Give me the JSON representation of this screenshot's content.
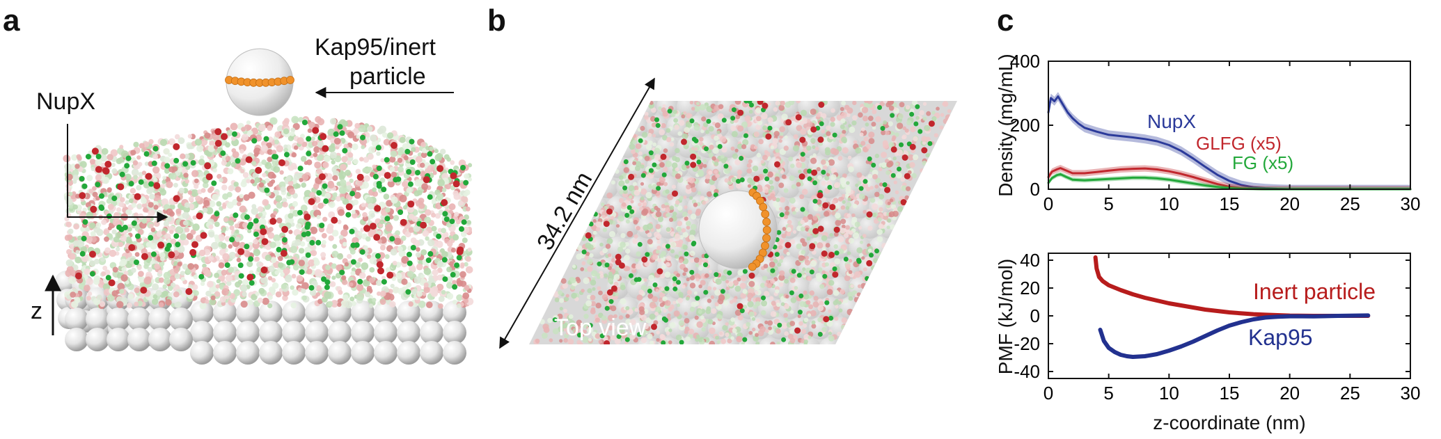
{
  "panels": {
    "a": {
      "letter": "a",
      "label_protein": "NupX",
      "particle_label_line1": "Kap95/inert",
      "particle_label_line2": "particle",
      "axis_label": "z"
    },
    "b": {
      "letter": "b",
      "size_label": "34.2 nm",
      "view_label": "Top view"
    },
    "c": {
      "letter": "c"
    }
  },
  "colors": {
    "nupx": "#2b3a9a",
    "glfg": "#c1272d",
    "fg": "#22a83a",
    "inert": "#b71c1c",
    "kap95": "#22318f",
    "particle_band": "#f0922b",
    "bead_light": "#e8e8e8",
    "bead_shadow": "#9a9a9a"
  },
  "chart_data": [
    {
      "type": "line",
      "ylabel": "Density (mg/mL)",
      "xlabel": "",
      "xlim": [
        0,
        30
      ],
      "ylim": [
        0,
        400
      ],
      "xticks": [
        0,
        5,
        10,
        15,
        20,
        25,
        30
      ],
      "yticks": [
        0,
        200,
        400
      ],
      "series": [
        {
          "name": "NupX",
          "color": "#2b3a9a",
          "x": [
            0,
            0.2,
            0.5,
            0.8,
            1.2,
            1.6,
            2,
            2.5,
            3,
            4,
            5,
            6,
            7,
            8,
            9,
            10,
            11,
            12,
            13,
            14,
            15,
            16,
            17,
            18,
            19,
            20,
            22,
            25,
            28,
            30
          ],
          "y": [
            240,
            285,
            275,
            290,
            265,
            240,
            222,
            205,
            192,
            180,
            170,
            166,
            162,
            157,
            150,
            138,
            120,
            96,
            70,
            45,
            26,
            13,
            6,
            3,
            1,
            0,
            0,
            0,
            0,
            0
          ]
        },
        {
          "name": "GLFG (x5)",
          "color": "#c1272d",
          "x": [
            0,
            0.3,
            0.7,
            1,
            1.5,
            2,
            3,
            4,
            5,
            6,
            7,
            8,
            9,
            10,
            11,
            12,
            13,
            14,
            15,
            16,
            17,
            18,
            20,
            25,
            30
          ],
          "y": [
            38,
            55,
            62,
            66,
            58,
            50,
            50,
            54,
            58,
            62,
            64,
            65,
            62,
            56,
            48,
            38,
            27,
            16,
            8,
            3,
            1,
            0,
            0,
            0,
            0
          ]
        },
        {
          "name": "FG (x5)",
          "color": "#22a83a",
          "x": [
            0,
            0.3,
            0.7,
            1,
            1.5,
            2,
            3,
            4,
            5,
            6,
            7,
            8,
            9,
            10,
            11,
            12,
            13,
            14,
            15,
            16,
            18,
            20,
            25,
            30
          ],
          "y": [
            20,
            35,
            44,
            47,
            38,
            30,
            28,
            30,
            32,
            34,
            36,
            36,
            34,
            30,
            24,
            18,
            12,
            7,
            3,
            1,
            0,
            0,
            0,
            0
          ]
        }
      ]
    },
    {
      "type": "line",
      "ylabel": "PMF (kJ/mol)",
      "xlabel": "z-coordinate (nm)",
      "xlim": [
        0,
        30
      ],
      "ylim": [
        -45,
        45
      ],
      "xticks": [
        0,
        5,
        10,
        15,
        20,
        25,
        30
      ],
      "yticks": [
        -40,
        -20,
        0,
        20,
        40
      ],
      "series": [
        {
          "name": "Inert particle",
          "color": "#b71c1c",
          "x": [
            3.9,
            4.0,
            4.2,
            4.5,
            5,
            6,
            7,
            8,
            9,
            10,
            11,
            12,
            13,
            14,
            15,
            16,
            17,
            18,
            19,
            20,
            22,
            24,
            26.5
          ],
          "y": [
            42,
            34,
            28,
            25,
            22,
            18.5,
            15.5,
            13,
            11,
            9,
            7.5,
            6,
            4.5,
            3.5,
            2.5,
            1.8,
            1.2,
            0.8,
            0.5,
            0.2,
            0,
            0,
            0
          ]
        },
        {
          "name": "Kap95",
          "color": "#22318f",
          "x": [
            4.3,
            4.6,
            5,
            5.5,
            6,
            6.5,
            7,
            8,
            9,
            10,
            11,
            12,
            13,
            14,
            15,
            16,
            17,
            18,
            19,
            20,
            21,
            22,
            24,
            26.5
          ],
          "y": [
            -10,
            -18,
            -23,
            -26,
            -28,
            -29,
            -29.5,
            -29,
            -27.5,
            -25,
            -22,
            -18.5,
            -14.5,
            -10.5,
            -7,
            -4.5,
            -2.5,
            -1.2,
            -0.6,
            -0.3,
            -0.3,
            -0.4,
            0,
            0.3
          ]
        }
      ]
    }
  ]
}
